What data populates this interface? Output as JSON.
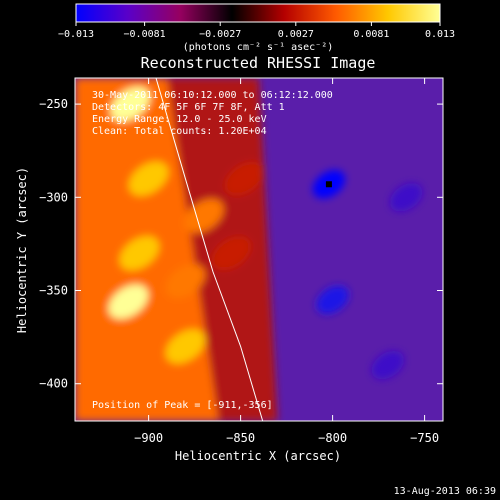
{
  "chart_data": {
    "type": "heatmap",
    "title": "Reconstructed RHESSI Image",
    "xlabel": "Heliocentric X (arcsec)",
    "ylabel": "Heliocentric Y (arcsec)",
    "xlim": [
      -940,
      -740
    ],
    "ylim": [
      -420,
      -236
    ],
    "x_ticks": [
      {
        "value": -900,
        "label": "−900"
      },
      {
        "value": -850,
        "label": "−850"
      },
      {
        "value": -800,
        "label": "−800"
      },
      {
        "value": -750,
        "label": "−750"
      }
    ],
    "y_ticks": [
      {
        "value": -250,
        "label": "−250"
      },
      {
        "value": -300,
        "label": "−300"
      },
      {
        "value": -350,
        "label": "−350"
      },
      {
        "value": -400,
        "label": "−400"
      }
    ],
    "colorbar": {
      "range": [
        -0.013,
        0.013
      ],
      "ticks": [
        {
          "value": -0.013,
          "label": "−0.013"
        },
        {
          "value": -0.0081,
          "label": "−0.0081"
        },
        {
          "value": -0.0027,
          "label": "−0.0027"
        },
        {
          "value": 0.0027,
          "label": "0.0027"
        },
        {
          "value": 0.0081,
          "label": "0.0081"
        },
        {
          "value": 0.013,
          "label": "0.013"
        }
      ],
      "unit_label": "(photons cm⁻² s⁻¹ asec⁻²)",
      "colors": [
        "#0000ff",
        "#5a00c8",
        "#960060",
        "#000000",
        "#b40000",
        "#ff5a00",
        "#ffc800",
        "#ffff96"
      ]
    },
    "annotations": [
      "30-May-2011 06:10:12.000 to 06:12:12.000",
      "Detectors: 4F 5F 6F 7F 8F, Att 1",
      "Energy Range: 12.0 - 25.0 keV",
      "Clean:   Total counts: 1.20E+04"
    ],
    "peak_text": "Position of Peak = [-911,-356]",
    "peak": {
      "x": -911,
      "y": -356
    },
    "limb_curve": {
      "x": [
        -896,
        -880,
        -865,
        -850,
        -838
      ],
      "y": [
        -236,
        -290,
        -340,
        -380,
        -420
      ]
    },
    "hotspots": [
      {
        "x": -910,
        "y": -250,
        "level": 0.95
      },
      {
        "x": -900,
        "y": -290,
        "level": 0.85
      },
      {
        "x": -905,
        "y": -330,
        "level": 0.85
      },
      {
        "x": -911,
        "y": -356,
        "level": 1.0
      },
      {
        "x": -880,
        "y": -380,
        "level": 0.8
      },
      {
        "x": -870,
        "y": -310,
        "level": 0.7
      },
      {
        "x": -880,
        "y": -345,
        "level": 0.75
      },
      {
        "x": -855,
        "y": -330,
        "level": 0.5
      },
      {
        "x": -848,
        "y": -290,
        "level": 0.45
      }
    ],
    "coldspots": [
      {
        "x": -802,
        "y": -293,
        "level": -1.0
      },
      {
        "x": -800,
        "y": -355,
        "level": -0.75
      },
      {
        "x": -760,
        "y": -300,
        "level": -0.6
      },
      {
        "x": -770,
        "y": -390,
        "level": -0.55
      }
    ]
  },
  "footer": {
    "timestamp": "13-Aug-2013 06:39"
  }
}
